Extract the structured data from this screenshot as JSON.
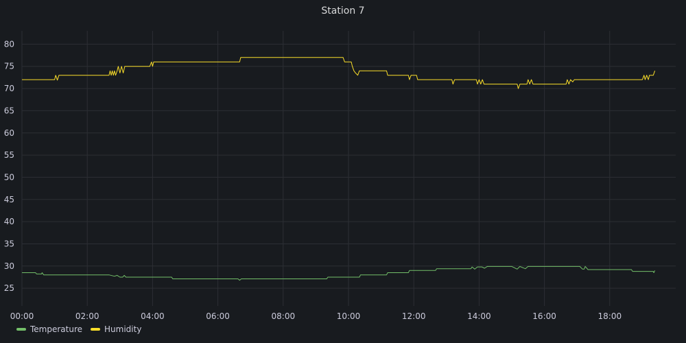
{
  "panel": {
    "title": "Station 7"
  },
  "colors": {
    "background": "#181b1f",
    "grid": "#2c2f34",
    "temperature": "#73bf69",
    "humidity": "#fade2a"
  },
  "chart_data": {
    "type": "line",
    "title": "Station 7",
    "xlabel": "",
    "ylabel": "",
    "x_ticks": [
      "00:00",
      "02:00",
      "04:00",
      "06:00",
      "08:00",
      "10:00",
      "12:00",
      "14:00",
      "16:00",
      "18:00"
    ],
    "y_ticks": [
      25,
      30,
      35,
      40,
      45,
      50,
      55,
      60,
      65,
      70,
      75,
      80
    ],
    "xlim": [
      "00:00",
      "19:40"
    ],
    "ylim": [
      21,
      83
    ],
    "grid": true,
    "legend_position": "bottom-left",
    "series": [
      {
        "name": "Temperature",
        "color": "#73bf69",
        "points": [
          [
            "00:00",
            28.5
          ],
          [
            "00:25",
            28.5
          ],
          [
            "00:27",
            28.2
          ],
          [
            "00:36",
            28.2
          ],
          [
            "00:37",
            28.5
          ],
          [
            "00:40",
            28.0
          ],
          [
            "01:20",
            28.0
          ],
          [
            "02:00",
            28.0
          ],
          [
            "02:40",
            28.0
          ],
          [
            "02:50",
            27.7
          ],
          [
            "02:55",
            27.9
          ],
          [
            "03:00",
            27.5
          ],
          [
            "03:05",
            27.5
          ],
          [
            "03:08",
            27.9
          ],
          [
            "03:11",
            27.5
          ],
          [
            "03:40",
            27.5
          ],
          [
            "04:00",
            27.5
          ],
          [
            "04:35",
            27.5
          ],
          [
            "04:37",
            27.1
          ],
          [
            "05:20",
            27.1
          ],
          [
            "06:00",
            27.1
          ],
          [
            "06:37",
            27.1
          ],
          [
            "06:40",
            26.8
          ],
          [
            "06:43",
            27.1
          ],
          [
            "07:30",
            27.1
          ],
          [
            "08:30",
            27.1
          ],
          [
            "09:20",
            27.1
          ],
          [
            "09:22",
            27.5
          ],
          [
            "10:00",
            27.5
          ],
          [
            "10:20",
            27.5
          ],
          [
            "10:22",
            28.0
          ],
          [
            "11:10",
            28.0
          ],
          [
            "11:12",
            28.5
          ],
          [
            "11:50",
            28.5
          ],
          [
            "11:52",
            29.0
          ],
          [
            "12:40",
            29.0
          ],
          [
            "12:42",
            29.4
          ],
          [
            "13:45",
            29.4
          ],
          [
            "13:47",
            29.8
          ],
          [
            "13:52",
            29.3
          ],
          [
            "13:57",
            29.8
          ],
          [
            "14:05",
            29.8
          ],
          [
            "14:10",
            29.5
          ],
          [
            "14:15",
            29.9
          ],
          [
            "14:40",
            29.9
          ],
          [
            "15:00",
            29.9
          ],
          [
            "15:10",
            29.3
          ],
          [
            "15:15",
            29.9
          ],
          [
            "15:25",
            29.4
          ],
          [
            "15:30",
            29.9
          ],
          [
            "16:00",
            29.9
          ],
          [
            "16:30",
            29.9
          ],
          [
            "17:05",
            29.9
          ],
          [
            "17:10",
            29.3
          ],
          [
            "17:13",
            29.3
          ],
          [
            "17:15",
            29.9
          ],
          [
            "17:20",
            29.2
          ],
          [
            "18:40",
            29.2
          ],
          [
            "18:42",
            28.8
          ],
          [
            "19:20",
            28.8
          ],
          [
            "19:21",
            28.5
          ],
          [
            "19:23",
            29.0
          ]
        ]
      },
      {
        "name": "Humidity",
        "color": "#fade2a",
        "points": [
          [
            "00:00",
            72
          ],
          [
            "01:00",
            72
          ],
          [
            "01:02",
            73
          ],
          [
            "01:05",
            71.9
          ],
          [
            "01:08",
            73
          ],
          [
            "02:00",
            73
          ],
          [
            "02:40",
            73
          ],
          [
            "02:42",
            74
          ],
          [
            "02:44",
            73
          ],
          [
            "02:46",
            74
          ],
          [
            "02:48",
            73
          ],
          [
            "02:50",
            74
          ],
          [
            "02:52",
            73
          ],
          [
            "02:55",
            74
          ],
          [
            "02:57",
            75
          ],
          [
            "03:00",
            73.5
          ],
          [
            "03:03",
            75
          ],
          [
            "03:06",
            73.5
          ],
          [
            "03:09",
            75
          ],
          [
            "03:30",
            75
          ],
          [
            "03:55",
            75
          ],
          [
            "03:58",
            76
          ],
          [
            "04:00",
            75
          ],
          [
            "04:02",
            76
          ],
          [
            "04:40",
            76
          ],
          [
            "05:20",
            76
          ],
          [
            "06:00",
            76
          ],
          [
            "06:40",
            76
          ],
          [
            "06:42",
            77
          ],
          [
            "07:30",
            77
          ],
          [
            "08:30",
            77
          ],
          [
            "09:30",
            77
          ],
          [
            "09:50",
            77
          ],
          [
            "09:53",
            76
          ],
          [
            "10:05",
            76
          ],
          [
            "10:07",
            75
          ],
          [
            "10:10",
            74
          ],
          [
            "10:13",
            73.5
          ],
          [
            "10:17",
            73
          ],
          [
            "10:20",
            74
          ],
          [
            "10:35",
            74
          ],
          [
            "11:10",
            74
          ],
          [
            "11:12",
            73
          ],
          [
            "11:50",
            73
          ],
          [
            "11:52",
            72
          ],
          [
            "11:55",
            73
          ],
          [
            "12:00",
            73
          ],
          [
            "12:05",
            73
          ],
          [
            "12:07",
            72
          ],
          [
            "12:40",
            72
          ],
          [
            "13:10",
            72
          ],
          [
            "13:12",
            71
          ],
          [
            "13:15",
            72
          ],
          [
            "13:55",
            72
          ],
          [
            "13:57",
            71
          ],
          [
            "14:00",
            72
          ],
          [
            "14:03",
            71
          ],
          [
            "14:06",
            72
          ],
          [
            "14:09",
            71
          ],
          [
            "14:20",
            71
          ],
          [
            "14:40",
            71
          ],
          [
            "15:10",
            71
          ],
          [
            "15:12",
            70
          ],
          [
            "15:15",
            71
          ],
          [
            "15:28",
            71
          ],
          [
            "15:30",
            72
          ],
          [
            "15:33",
            71
          ],
          [
            "15:36",
            72
          ],
          [
            "15:39",
            71
          ],
          [
            "16:00",
            71
          ],
          [
            "16:40",
            71
          ],
          [
            "16:42",
            72
          ],
          [
            "16:45",
            71
          ],
          [
            "16:48",
            72
          ],
          [
            "16:52",
            71.5
          ],
          [
            "16:55",
            72
          ],
          [
            "17:30",
            72
          ],
          [
            "18:00",
            72
          ],
          [
            "18:40",
            72
          ],
          [
            "19:00",
            72
          ],
          [
            "19:03",
            73
          ],
          [
            "19:05",
            72
          ],
          [
            "19:08",
            73
          ],
          [
            "19:11",
            72
          ],
          [
            "19:13",
            73
          ],
          [
            "19:20",
            73
          ],
          [
            "19:23",
            74
          ]
        ]
      }
    ]
  }
}
